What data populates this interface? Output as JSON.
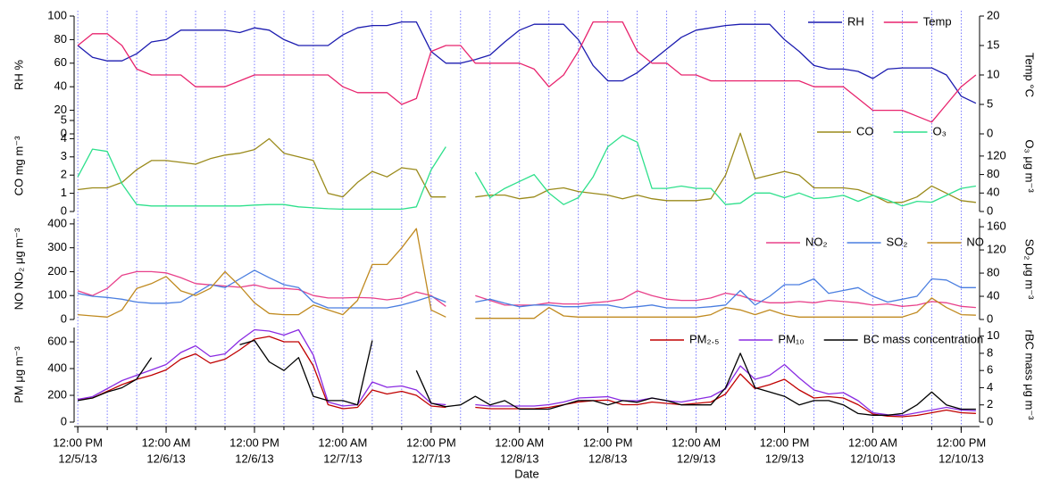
{
  "chart_data": [
    {
      "type": "line",
      "legend": "upper right",
      "x": [
        0,
        2,
        4,
        6,
        8,
        10,
        12,
        14,
        16,
        18,
        20,
        22,
        24,
        26,
        28,
        30,
        32,
        34,
        36,
        38,
        40,
        42,
        44,
        46,
        48,
        50,
        52,
        54,
        56,
        58,
        60,
        62,
        64,
        66,
        68,
        70,
        72,
        74,
        76,
        78,
        80,
        82,
        84,
        86,
        88,
        90,
        92,
        94,
        96,
        98,
        100,
        102,
        104,
        106,
        108,
        110,
        112,
        114,
        116,
        118,
        120,
        122
      ],
      "xlim": [
        -0.5,
        122.5
      ],
      "ylim": [
        0,
        100
      ],
      "yticks": [
        0,
        20,
        40,
        60,
        80,
        100
      ],
      "ylabel": "RH  %",
      "ycolor": "#1c1cb0",
      "y2lim": [
        0,
        20
      ],
      "y2ticks": [
        0,
        5,
        10,
        15,
        20
      ],
      "y2label": "Temp °C",
      "y2color": "#e8246e",
      "series": [
        {
          "name": "RH",
          "color": "#1c1cb0",
          "values": [
            75,
            65,
            62,
            62,
            68,
            78,
            80,
            88,
            88,
            88,
            88,
            86,
            90,
            88,
            80,
            75,
            75,
            75,
            84,
            90,
            92,
            92,
            95,
            95,
            70,
            60,
            60,
            63,
            67,
            78,
            88,
            93,
            93,
            93,
            80,
            58,
            45,
            45,
            52,
            62,
            72,
            82,
            88,
            90,
            92,
            93,
            93,
            93,
            80,
            70,
            58,
            55,
            55,
            53,
            47,
            55,
            56,
            56,
            56,
            50,
            32,
            26
          ]
        },
        {
          "name": "Temp",
          "color": "#e8246e",
          "axis": "y2",
          "values": [
            15,
            17,
            17,
            15,
            11,
            10,
            10,
            10,
            8,
            8,
            8,
            9,
            10,
            10,
            10,
            10,
            10,
            10,
            8,
            7,
            7,
            7,
            5,
            6,
            14,
            15,
            15,
            12,
            12,
            12,
            12,
            11,
            8,
            10,
            14,
            19,
            19,
            19,
            14,
            12,
            12,
            10,
            10,
            9,
            9,
            9,
            9,
            9,
            9,
            9,
            8,
            8,
            8,
            6,
            4,
            4,
            4,
            3,
            2,
            5,
            8,
            10
          ]
        }
      ]
    },
    {
      "type": "line",
      "legend": "upper right",
      "x": [
        0,
        2,
        4,
        6,
        8,
        10,
        12,
        14,
        16,
        18,
        20,
        22,
        24,
        26,
        28,
        30,
        32,
        34,
        36,
        38,
        40,
        42,
        44,
        46,
        48,
        50,
        52,
        54,
        56,
        58,
        60,
        62,
        64,
        66,
        68,
        70,
        72,
        74,
        76,
        78,
        80,
        82,
        84,
        86,
        88,
        90,
        92,
        94,
        96,
        98,
        100,
        102,
        104,
        106,
        108,
        110,
        112,
        114,
        116,
        118,
        120,
        122
      ],
      "xlim": [
        -0.5,
        122.5
      ],
      "ylim": [
        0,
        5
      ],
      "yticks": [
        0,
        1,
        2,
        3,
        4,
        5
      ],
      "ylabel": "CO  mg m⁻³",
      "ycolor": "#9a8a1a",
      "y2lim": [
        0,
        197
      ],
      "y2ticks": [
        0,
        40,
        80,
        120
      ],
      "y2label": "O₃ μg m⁻³",
      "y2color": "#2ee08c",
      "series": [
        {
          "name": "CO",
          "color": "#9a8a1a",
          "values": [
            1.2,
            1.3,
            1.3,
            1.6,
            2.3,
            2.8,
            2.8,
            2.7,
            2.6,
            2.9,
            3.1,
            3.2,
            3.4,
            4.0,
            3.2,
            3.0,
            2.8,
            1.0,
            0.8,
            1.6,
            2.2,
            1.9,
            2.4,
            2.3,
            0.8,
            0.8,
            null,
            0.8,
            0.9,
            0.9,
            0.7,
            0.8,
            1.2,
            1.3,
            1.1,
            1.0,
            0.9,
            0.7,
            0.9,
            0.7,
            0.6,
            0.6,
            0.6,
            0.7,
            2.0,
            4.3,
            1.8,
            2.0,
            2.2,
            2.0,
            1.3,
            1.3,
            1.3,
            1.2,
            0.9,
            0.5,
            0.5,
            0.8,
            1.4,
            1.0,
            0.6,
            0.5
          ]
        },
        {
          "name": "O₃",
          "color": "#2ee08c",
          "axis": "y2",
          "values": [
            75,
            135,
            130,
            60,
            15,
            12,
            12,
            12,
            12,
            12,
            12,
            12,
            14,
            15,
            15,
            10,
            8,
            6,
            5,
            5,
            5,
            5,
            5,
            10,
            90,
            140,
            null,
            85,
            30,
            50,
            65,
            80,
            40,
            15,
            30,
            75,
            140,
            165,
            150,
            50,
            50,
            55,
            50,
            50,
            15,
            18,
            40,
            40,
            30,
            40,
            28,
            30,
            35,
            22,
            35,
            25,
            12,
            22,
            20,
            35,
            50,
            55
          ]
        }
      ]
    },
    {
      "type": "line",
      "legend": "upper right",
      "x": [
        0,
        2,
        4,
        6,
        8,
        10,
        12,
        14,
        16,
        18,
        20,
        22,
        24,
        26,
        28,
        30,
        32,
        34,
        36,
        38,
        40,
        42,
        44,
        46,
        48,
        50,
        52,
        54,
        56,
        58,
        60,
        62,
        64,
        66,
        68,
        70,
        72,
        74,
        76,
        78,
        80,
        82,
        84,
        86,
        88,
        90,
        92,
        94,
        96,
        98,
        100,
        102,
        104,
        106,
        108,
        110,
        112,
        114,
        116,
        118,
        120,
        122
      ],
      "xlim": [
        -0.5,
        122.5
      ],
      "ylim": [
        0,
        422
      ],
      "yticks": [
        0,
        100,
        200,
        300,
        400
      ],
      "ylabel": "NO NO₂ μg m⁻³",
      "ycolor": "#e8408a",
      "y2lim": [
        0,
        174
      ],
      "y2ticks": [
        0,
        40,
        80,
        120,
        160
      ],
      "y2label": "SO₂ μg m⁻³",
      "y2color": "#4a7ee0",
      "series": [
        {
          "name": "NO₂",
          "color": "#e8408a",
          "values": [
            120,
            100,
            130,
            185,
            200,
            200,
            195,
            175,
            150,
            145,
            140,
            135,
            145,
            130,
            130,
            125,
            100,
            90,
            90,
            92,
            90,
            82,
            90,
            115,
            100,
            55,
            null,
            100,
            80,
            60,
            60,
            60,
            70,
            65,
            65,
            70,
            75,
            85,
            120,
            100,
            85,
            80,
            80,
            90,
            110,
            100,
            80,
            70,
            70,
            75,
            70,
            80,
            75,
            70,
            60,
            65,
            55,
            60,
            75,
            70,
            55,
            50
          ]
        },
        {
          "name": "SO₂",
          "color": "#4a7ee0",
          "axis": "y2",
          "values": [
            45,
            40,
            38,
            35,
            30,
            28,
            28,
            30,
            45,
            60,
            55,
            70,
            85,
            72,
            60,
            55,
            30,
            20,
            20,
            20,
            20,
            20,
            25,
            32,
            40,
            30,
            null,
            30,
            35,
            28,
            22,
            25,
            25,
            22,
            22,
            25,
            25,
            20,
            22,
            25,
            20,
            20,
            20,
            22,
            25,
            50,
            25,
            40,
            60,
            60,
            70,
            45,
            50,
            55,
            40,
            30,
            35,
            40,
            70,
            68,
            55,
            55
          ]
        },
        {
          "name": "NO",
          "color": "#c08a20",
          "values": [
            20,
            15,
            10,
            40,
            130,
            150,
            180,
            120,
            100,
            130,
            200,
            140,
            70,
            25,
            20,
            20,
            60,
            40,
            20,
            80,
            230,
            230,
            300,
            380,
            40,
            10,
            null,
            5,
            5,
            5,
            5,
            5,
            50,
            15,
            10,
            10,
            10,
            10,
            10,
            10,
            10,
            10,
            10,
            20,
            50,
            40,
            20,
            40,
            20,
            10,
            10,
            10,
            10,
            10,
            10,
            10,
            10,
            30,
            90,
            50,
            20,
            18
          ]
        }
      ]
    },
    {
      "type": "line",
      "legend": "upper right",
      "x": [
        0,
        2,
        4,
        6,
        8,
        10,
        12,
        14,
        16,
        18,
        20,
        22,
        24,
        26,
        28,
        30,
        32,
        34,
        36,
        38,
        40,
        42,
        44,
        46,
        48,
        50,
        52,
        54,
        56,
        58,
        60,
        62,
        64,
        66,
        68,
        70,
        72,
        74,
        76,
        78,
        80,
        82,
        84,
        86,
        88,
        90,
        92,
        94,
        96,
        98,
        100,
        102,
        104,
        106,
        108,
        110,
        112,
        114,
        116,
        118,
        120,
        122
      ],
      "xlim": [
        -0.5,
        122.5
      ],
      "xlabel": "Date",
      "xticks": [
        {
          "value": 0,
          "label": "12:00 PM",
          "sublabel": "12/5/13"
        },
        {
          "value": 12,
          "label": "12:00 AM",
          "sublabel": "12/6/13"
        },
        {
          "value": 24,
          "label": "12:00 PM",
          "sublabel": "12/6/13"
        },
        {
          "value": 36,
          "label": "12:00 AM",
          "sublabel": "12/7/13"
        },
        {
          "value": 48,
          "label": "12:00 PM",
          "sublabel": "12/7/13"
        },
        {
          "value": 60,
          "label": "12:00 AM",
          "sublabel": "12/8/13"
        },
        {
          "value": 72,
          "label": "12:00 PM",
          "sublabel": "12/8/13"
        },
        {
          "value": 84,
          "label": "12:00 AM",
          "sublabel": "12/9/13"
        },
        {
          "value": 96,
          "label": "12:00 PM",
          "sublabel": "12/9/13"
        },
        {
          "value": 108,
          "label": "12:00 AM",
          "sublabel": "12/10/13"
        },
        {
          "value": 120,
          "label": "12:00 PM",
          "sublabel": "12/10/13"
        }
      ],
      "xminorticks": [
        0,
        4,
        8,
        12,
        16,
        20,
        24,
        28,
        32,
        36,
        40,
        44,
        48,
        52,
        56,
        60,
        64,
        68,
        72,
        76,
        80,
        84,
        88,
        92,
        96,
        100,
        104,
        108,
        112,
        116,
        120
      ],
      "xgrid": true,
      "grid_color": "#5a5aff",
      "ylim": [
        0,
        707
      ],
      "yticks": [
        0,
        200,
        400,
        600
      ],
      "ylabel": "PM  μg m⁻³",
      "ycolor": "#8a2be2",
      "y2lim": [
        0,
        11
      ],
      "y2ticks": [
        0,
        2,
        4,
        6,
        8,
        10
      ],
      "y2label": "rBC mass μg m⁻³",
      "y2color": "#000000",
      "series": [
        {
          "name": "PM₂.₅",
          "color": "#c00000",
          "values": [
            170,
            180,
            230,
            280,
            320,
            350,
            390,
            470,
            510,
            440,
            470,
            540,
            620,
            640,
            600,
            600,
            420,
            130,
            100,
            110,
            240,
            210,
            230,
            200,
            120,
            110,
            null,
            110,
            100,
            100,
            100,
            100,
            110,
            130,
            150,
            160,
            165,
            130,
            130,
            150,
            140,
            130,
            140,
            150,
            210,
            360,
            250,
            280,
            320,
            240,
            180,
            190,
            180,
            130,
            60,
            45,
            40,
            50,
            70,
            90,
            70,
            65
          ]
        },
        {
          "name": "PM₁₀",
          "color": "#8a2be2",
          "values": [
            170,
            190,
            250,
            310,
            350,
            390,
            430,
            520,
            570,
            490,
            510,
            610,
            690,
            680,
            650,
            690,
            500,
            150,
            120,
            130,
            300,
            260,
            270,
            240,
            140,
            130,
            null,
            130,
            120,
            120,
            120,
            120,
            130,
            150,
            180,
            185,
            190,
            160,
            160,
            180,
            160,
            150,
            170,
            190,
            250,
            420,
            320,
            350,
            430,
            330,
            240,
            210,
            220,
            160,
            70,
            55,
            50,
            70,
            90,
            110,
            90,
            85
          ]
        },
        {
          "name": "BC mass concentration",
          "color": "#000000",
          "axis": "y2",
          "values": [
            2.5,
            2.8,
            3.5,
            4.0,
            5.0,
            7.5,
            null,
            null,
            null,
            null,
            null,
            9.0,
            9.5,
            7.0,
            6.0,
            7.5,
            3.0,
            2.5,
            2.5,
            2.0,
            9.5,
            null,
            null,
            6.0,
            2.2,
            1.8,
            2.0,
            3.0,
            2.0,
            2.5,
            1.5,
            1.5,
            1.5,
            2.0,
            2.5,
            2.5,
            2.0,
            2.5,
            2.3,
            2.8,
            2.5,
            2.0,
            2.0,
            2.0,
            4.0,
            8.0,
            4.0,
            3.5,
            3.0,
            2.0,
            2.5,
            2.5,
            2.0,
            1.0,
            0.8,
            0.8,
            1.0,
            2.0,
            3.5,
            2.0,
            1.5,
            1.5
          ]
        }
      ]
    }
  ]
}
